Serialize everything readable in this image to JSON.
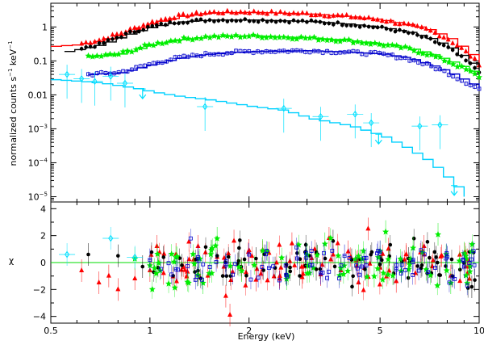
{
  "chart_data": {
    "type": "scatter",
    "title": "",
    "x_axis": {
      "label": "Energy (keV)",
      "scale": "log",
      "range": [
        0.5,
        10
      ],
      "major_ticks": [
        0.5,
        1,
        2,
        5,
        10
      ],
      "tick_labels": [
        "0.5",
        "1",
        "2",
        "5",
        "10"
      ]
    },
    "top_panel": {
      "ylabel_parts": [
        "normalized counts s",
        "−1",
        " keV",
        "−1"
      ],
      "y_scale": "log",
      "y_range": [
        7e-06,
        5
      ],
      "y_ticks": [
        {
          "value": 1,
          "label": "1"
        },
        {
          "value": 0.1,
          "label": "0.1"
        },
        {
          "value": 0.01,
          "label": "0.01"
        },
        {
          "value": 0.001,
          "base": "10",
          "exp": "−3"
        },
        {
          "value": 0.0001,
          "base": "10",
          "exp": "−4"
        },
        {
          "value": 1e-05,
          "base": "10",
          "exp": "−5"
        }
      ]
    },
    "bottom_panel": {
      "ylabel": "χ",
      "y_range": [
        -4.5,
        4.5
      ],
      "y_ticks": [
        -4,
        -2,
        0,
        2,
        4
      ],
      "y_tick_labels": [
        "−4",
        "−2",
        "0",
        "2",
        "4"
      ]
    },
    "series": [
      {
        "name": "red",
        "color": "#ff0000",
        "marker": "triangle",
        "model": [
          [
            0.5,
            0.27
          ],
          [
            0.6,
            0.3
          ],
          [
            0.7,
            0.4
          ],
          [
            0.8,
            0.6
          ],
          [
            0.9,
            0.9
          ],
          [
            1.0,
            1.3
          ],
          [
            1.2,
            2.0
          ],
          [
            1.5,
            2.6
          ],
          [
            2.0,
            2.7
          ],
          [
            3.0,
            2.4
          ],
          [
            4.0,
            2.0
          ],
          [
            5.0,
            1.6
          ],
          [
            6.0,
            1.15
          ],
          [
            7.0,
            0.8
          ],
          [
            8.0,
            0.45
          ],
          [
            9.0,
            0.2
          ],
          [
            10.0,
            0.08
          ]
        ],
        "chi": [
          [
            0.62,
            -0.6
          ],
          [
            0.7,
            -1.5
          ],
          [
            0.75,
            -1.0
          ],
          [
            0.8,
            -2.0
          ],
          [
            0.9,
            -1.2
          ],
          [
            1.0,
            -0.6
          ],
          [
            1.05,
            1.2
          ],
          [
            1.1,
            -0.8
          ],
          [
            1.2,
            0.6
          ],
          [
            1.3,
            -0.7
          ],
          [
            1.4,
            1.2
          ],
          [
            1.5,
            -1.0
          ],
          [
            1.6,
            0.4
          ],
          [
            1.7,
            -2.5
          ],
          [
            1.8,
            1.6
          ],
          [
            1.9,
            -0.5
          ],
          [
            2.0,
            0.9
          ],
          [
            2.1,
            -1.3
          ],
          [
            2.3,
            0.7
          ],
          [
            2.5,
            -0.4
          ],
          [
            2.7,
            1.4
          ],
          [
            2.9,
            -1.1
          ],
          [
            3.1,
            0.3
          ],
          [
            3.3,
            -0.9
          ],
          [
            3.5,
            1.8
          ],
          [
            3.8,
            -0.6
          ],
          [
            4.0,
            0.8
          ],
          [
            4.3,
            -1.5
          ],
          [
            4.6,
            2.5
          ],
          [
            5.0,
            -0.4
          ],
          [
            5.3,
            1.0
          ],
          [
            5.6,
            -1.4
          ],
          [
            6.0,
            0.6
          ],
          [
            6.4,
            -0.8
          ],
          [
            6.8,
            1.2
          ],
          [
            7.2,
            -0.3
          ],
          [
            7.7,
            0.5
          ],
          [
            8.2,
            -1.0
          ],
          [
            9.2,
            0.2
          ],
          [
            1.75,
            -3.9
          ]
        ]
      },
      {
        "name": "black",
        "color": "#000000",
        "marker": "dot",
        "model": [
          [
            0.55,
            0.19
          ],
          [
            0.6,
            0.22
          ],
          [
            0.7,
            0.3
          ],
          [
            0.8,
            0.5
          ],
          [
            0.9,
            0.75
          ],
          [
            1.0,
            1.0
          ],
          [
            1.2,
            1.4
          ],
          [
            1.5,
            1.6
          ],
          [
            2.0,
            1.6
          ],
          [
            3.0,
            1.45
          ],
          [
            4.0,
            1.2
          ],
          [
            5.0,
            0.95
          ],
          [
            6.0,
            0.7
          ],
          [
            7.0,
            0.45
          ],
          [
            8.0,
            0.25
          ],
          [
            9.0,
            0.11
          ],
          [
            10.0,
            0.05
          ]
        ],
        "chi": [
          [
            0.65,
            0.6
          ],
          [
            0.8,
            0.5
          ],
          [
            0.95,
            -0.3
          ],
          [
            1.1,
            0.4
          ],
          [
            1.25,
            -0.2
          ],
          [
            1.4,
            -0.6
          ],
          [
            1.6,
            0.5
          ],
          [
            1.85,
            -0.1
          ],
          [
            2.1,
            0.3
          ],
          [
            2.4,
            -0.4
          ],
          [
            2.8,
            0.7
          ],
          [
            3.2,
            -0.5
          ],
          [
            3.6,
            1.6
          ],
          [
            4.1,
            0.2
          ],
          [
            4.5,
            -0.5
          ],
          [
            5.0,
            0.4
          ],
          [
            5.5,
            -0.8
          ],
          [
            6.1,
            0.3
          ],
          [
            6.7,
            -0.2
          ],
          [
            7.4,
            0.4
          ],
          [
            8.3,
            -1.0
          ],
          [
            9.5,
            -1.8
          ],
          [
            9.7,
            -1.3
          ]
        ]
      },
      {
        "name": "green",
        "color": "#00ee00",
        "marker": "star",
        "model": [
          [
            0.65,
            0.13
          ],
          [
            0.8,
            0.16
          ],
          [
            0.9,
            0.22
          ],
          [
            1.0,
            0.3
          ],
          [
            1.2,
            0.42
          ],
          [
            1.5,
            0.52
          ],
          [
            2.0,
            0.55
          ],
          [
            3.0,
            0.48
          ],
          [
            4.0,
            0.4
          ],
          [
            5.0,
            0.31
          ],
          [
            6.0,
            0.24
          ],
          [
            7.0,
            0.16
          ],
          [
            8.0,
            0.1
          ],
          [
            9.0,
            0.06
          ],
          [
            10.0,
            0.035
          ]
        ],
        "chi": [
          [
            0.9,
            0.3
          ],
          [
            1.0,
            -0.2
          ],
          [
            1.2,
            0.4
          ],
          [
            1.4,
            -0.9
          ],
          [
            1.6,
            1.8
          ],
          [
            1.9,
            -0.6
          ],
          [
            2.2,
            0.9
          ],
          [
            2.6,
            -1.2
          ],
          [
            3.0,
            0.6
          ],
          [
            3.4,
            1.4
          ],
          [
            3.8,
            -0.4
          ],
          [
            4.3,
            0.5
          ],
          [
            4.8,
            -1.0
          ],
          [
            5.2,
            2.3
          ],
          [
            5.8,
            -0.6
          ],
          [
            6.3,
            1.1
          ],
          [
            6.9,
            -0.5
          ],
          [
            7.5,
            2.1
          ],
          [
            8.2,
            -1.5
          ],
          [
            9.0,
            0.7
          ],
          [
            1.45,
            -1.5
          ]
        ]
      },
      {
        "name": "blue",
        "color": "#0000cc",
        "marker": "square",
        "model": [
          [
            0.65,
            0.04
          ],
          [
            0.8,
            0.045
          ],
          [
            0.9,
            0.06
          ],
          [
            1.0,
            0.08
          ],
          [
            1.2,
            0.12
          ],
          [
            1.5,
            0.16
          ],
          [
            2.0,
            0.19
          ],
          [
            3.0,
            0.2
          ],
          [
            4.0,
            0.18
          ],
          [
            5.0,
            0.16
          ],
          [
            6.0,
            0.12
          ],
          [
            7.0,
            0.075
          ],
          [
            8.0,
            0.045
          ],
          [
            9.0,
            0.025
          ],
          [
            10.0,
            0.015
          ]
        ],
        "chi": [
          [
            1.0,
            0.2
          ],
          [
            1.2,
            -0.5
          ],
          [
            1.4,
            0.4
          ],
          [
            1.7,
            -0.2
          ],
          [
            2.0,
            0.6
          ],
          [
            2.3,
            -0.4
          ],
          [
            2.8,
            0.3
          ],
          [
            3.3,
            -0.8
          ],
          [
            3.9,
            0.5
          ],
          [
            4.4,
            -0.3
          ],
          [
            5.0,
            0.8
          ],
          [
            5.6,
            -0.5
          ],
          [
            6.3,
            0.2
          ],
          [
            7.0,
            -0.7
          ],
          [
            8.0,
            0.4
          ],
          [
            9.0,
            -0.3
          ]
        ]
      },
      {
        "name": "cyan",
        "color": "#00e0ff",
        "marker": "diamond",
        "model": [
          [
            0.5,
            0.028
          ],
          [
            0.6,
            0.025
          ],
          [
            0.7,
            0.022
          ],
          [
            0.8,
            0.018
          ],
          [
            0.9,
            0.015
          ],
          [
            1.0,
            0.012
          ],
          [
            1.2,
            0.009
          ],
          [
            1.5,
            0.007
          ],
          [
            2.0,
            0.0045
          ],
          [
            2.5,
            0.0035
          ],
          [
            3.0,
            0.002
          ],
          [
            4.0,
            0.0012
          ],
          [
            5.0,
            0.0006
          ],
          [
            6.0,
            0.00025
          ],
          [
            7.0,
            0.0001
          ],
          [
            8.0,
            3e-05
          ],
          [
            9.0,
            1e-05
          ]
        ],
        "points": [
          [
            0.56,
            0.04
          ],
          [
            0.62,
            0.03
          ],
          [
            0.68,
            0.025
          ],
          [
            0.76,
            0.035
          ],
          [
            0.84,
            0.022
          ],
          [
            1.47,
            0.0045
          ],
          [
            2.55,
            0.004
          ],
          [
            3.3,
            0.0023
          ],
          [
            4.2,
            0.0027
          ],
          [
            4.7,
            0.0015
          ],
          [
            6.6,
            0.0012
          ],
          [
            7.6,
            0.0013
          ]
        ],
        "upper_limits": [
          0.95,
          4.95,
          8.4
        ],
        "chi": [
          [
            0.56,
            0.6
          ],
          [
            0.76,
            1.8
          ],
          [
            0.9,
            0.4
          ]
        ]
      }
    ]
  }
}
